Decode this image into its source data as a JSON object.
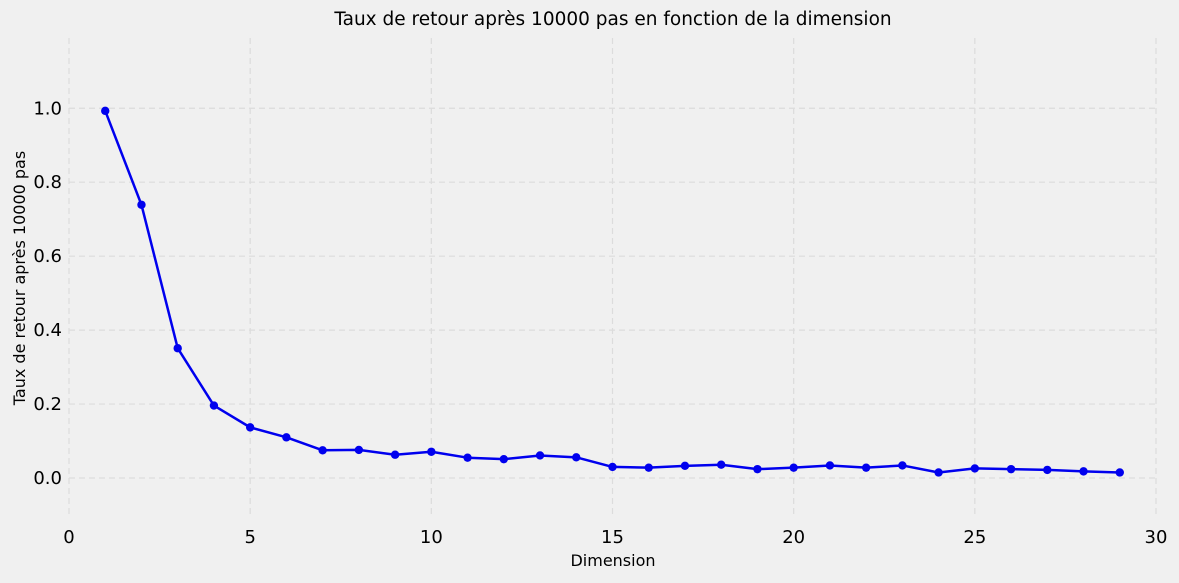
{
  "chart_data": {
    "type": "line",
    "title": "Taux de retour après 10000 pas en fonction de la dimension",
    "xlabel": "Dimension",
    "ylabel": "Taux de retour après 10000 pas",
    "xlim": [
      0,
      30
    ],
    "ylim": [
      -0.1,
      1.19
    ],
    "xticks": [
      0,
      5,
      10,
      15,
      20,
      25,
      30
    ],
    "xtick_labels": [
      "0",
      "5",
      "10",
      "15",
      "20",
      "25",
      "30"
    ],
    "yticks": [
      0.0,
      0.2,
      0.4,
      0.6,
      0.8,
      1.0
    ],
    "ytick_labels": [
      "0.0",
      "0.2",
      "0.4",
      "0.6",
      "0.8",
      "1.0"
    ],
    "grid": true,
    "series_color": "#0000ee",
    "background": "#f0f0f0",
    "gridline_color": "#dcdcdc",
    "series": [
      {
        "x": [
          1,
          2,
          3,
          4,
          5,
          6,
          7,
          8,
          9,
          10,
          11,
          12,
          13,
          14,
          15,
          16,
          17,
          18,
          19,
          20,
          21,
          22,
          23,
          24,
          25,
          26,
          27,
          28,
          29
        ],
        "values": [
          0.993,
          0.739,
          0.351,
          0.196,
          0.137,
          0.11,
          0.075,
          0.076,
          0.063,
          0.071,
          0.055,
          0.051,
          0.061,
          0.056,
          0.03,
          0.028,
          0.033,
          0.036,
          0.024,
          0.028,
          0.034,
          0.028,
          0.034,
          0.015,
          0.026,
          0.024,
          0.022,
          0.018,
          0.015
        ]
      }
    ]
  }
}
